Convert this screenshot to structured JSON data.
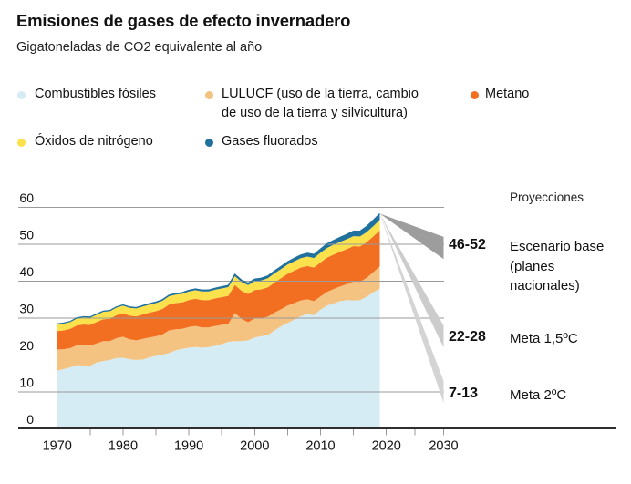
{
  "header": {
    "title": "Emisiones de gases de efecto invernadero",
    "subtitle": "Gigatoneladas de CO2 equivalente al año"
  },
  "legend": {
    "items": [
      {
        "label": "Combustibles fósiles"
      },
      {
        "label": "LULUCF (uso de la tierra, cambio\nde uso de la tierra y silvicultura)"
      },
      {
        "label": "Metano"
      },
      {
        "label": "Óxidos de nitrógeno"
      },
      {
        "label": "Gases fluorados"
      }
    ]
  },
  "chart_data": {
    "type": "area",
    "title": "Emisiones de gases de efecto invernadero",
    "ylabel": "Gigatoneladas de CO2 equivalente al año",
    "stacked": true,
    "grid": true,
    "years_start": 1970,
    "years_end": 2019,
    "series": [
      {
        "id": "combustibles-fosiles",
        "name": "Combustibles fósiles",
        "color": "#d6ecf5",
        "values": [
          15.8,
          16.2,
          16.7,
          17.3,
          17.2,
          17.1,
          18.0,
          18.4,
          18.7,
          19.2,
          19.3,
          18.9,
          18.7,
          18.8,
          19.4,
          19.8,
          20.1,
          20.6,
          21.3,
          21.7,
          22.0,
          22.2,
          22.0,
          22.2,
          22.5,
          23.0,
          23.6,
          23.8,
          23.8,
          24.0,
          24.8,
          25.1,
          25.4,
          26.7,
          27.8,
          28.7,
          29.6,
          30.5,
          31.1,
          30.8,
          32.3,
          33.4,
          34.0,
          34.6,
          34.9,
          34.8,
          34.9,
          35.8,
          37.0,
          38.0
        ]
      },
      {
        "id": "lulucf",
        "name": "LULUCF",
        "color": "#f5c381",
        "values": [
          5.7,
          5.4,
          5.2,
          5.4,
          5.6,
          5.5,
          5.2,
          5.4,
          5.1,
          5.4,
          5.7,
          5.4,
          5.3,
          5.6,
          5.4,
          5.3,
          5.5,
          6.1,
          5.7,
          5.4,
          5.6,
          5.7,
          5.5,
          5.3,
          5.4,
          5.2,
          4.9,
          7.6,
          6.0,
          4.9,
          5.1,
          4.9,
          5.0,
          4.8,
          4.6,
          4.7,
          4.5,
          4.3,
          4.0,
          3.8,
          3.6,
          3.7,
          3.9,
          4.0,
          4.3,
          5.1,
          4.9,
          5.1,
          5.4,
          6.0
        ]
      },
      {
        "id": "metano",
        "name": "Metano",
        "color": "#f26e21",
        "values": [
          5.0,
          5.1,
          5.2,
          5.35,
          5.5,
          5.6,
          5.75,
          5.9,
          6.05,
          6.2,
          6.3,
          6.4,
          6.5,
          6.6,
          6.7,
          6.8,
          6.9,
          7.0,
          7.1,
          7.2,
          7.3,
          7.35,
          7.4,
          7.4,
          7.45,
          7.5,
          7.55,
          7.6,
          7.6,
          7.65,
          7.7,
          7.8,
          7.95,
          8.15,
          8.4,
          8.6,
          8.75,
          8.9,
          9.0,
          9.1,
          9.2,
          9.3,
          9.35,
          9.4,
          9.5,
          9.6,
          9.6,
          9.65,
          9.7,
          9.8
        ]
      },
      {
        "id": "oxidos-de-nitrogeno",
        "name": "Óxidos de nitrógeno",
        "color": "#fbe14b",
        "values": [
          1.9,
          1.92,
          1.94,
          1.96,
          1.98,
          2.0,
          2.02,
          2.04,
          2.06,
          2.08,
          2.1,
          2.12,
          2.14,
          2.16,
          2.18,
          2.2,
          2.22,
          2.24,
          2.26,
          2.28,
          2.3,
          2.31,
          2.32,
          2.33,
          2.34,
          2.35,
          2.36,
          2.37,
          2.38,
          2.39,
          2.4,
          2.42,
          2.44,
          2.46,
          2.48,
          2.5,
          2.52,
          2.54,
          2.56,
          2.58,
          2.6,
          2.62,
          2.64,
          2.66,
          2.68,
          2.7,
          2.72,
          2.74,
          2.77,
          2.8
        ]
      },
      {
        "id": "gases-fluorados",
        "name": "Gases fluorados",
        "color": "#20719e",
        "values": [
          0.05,
          0.06,
          0.08,
          0.09,
          0.1,
          0.12,
          0.13,
          0.15,
          0.17,
          0.18,
          0.2,
          0.21,
          0.23,
          0.24,
          0.26,
          0.27,
          0.29,
          0.3,
          0.32,
          0.34,
          0.35,
          0.36,
          0.38,
          0.4,
          0.42,
          0.45,
          0.47,
          0.49,
          0.51,
          0.53,
          0.55,
          0.58,
          0.62,
          0.66,
          0.7,
          0.75,
          0.8,
          0.85,
          0.9,
          0.95,
          1.0,
          1.07,
          1.14,
          1.21,
          1.28,
          1.35,
          1.43,
          1.52,
          1.61,
          1.7
        ]
      }
    ],
    "y_axis": {
      "ticks": [
        0,
        10,
        20,
        30,
        40,
        50,
        60
      ],
      "min": 0,
      "max": 60
    },
    "x_axis": {
      "tick_years": [
        1970,
        1975,
        1980,
        1985,
        1990,
        1995,
        2000,
        2005,
        2010,
        2015,
        2020,
        2025,
        2030
      ],
      "label_years": [
        1970,
        1980,
        1990,
        2000,
        2010,
        2020,
        2030
      ]
    },
    "projections": {
      "label": "Proyecciones",
      "start_year": 2019,
      "end_year": 2030,
      "wedges": [
        {
          "id": "escenario-base",
          "value_label": "46-52",
          "desc": "Escenario base\n(planes\nnacionales)",
          "range_2030": [
            46,
            52
          ],
          "color": "#9d9d9d"
        },
        {
          "id": "meta-1-5",
          "value_label": "22-28",
          "desc": "Meta 1,5ºC",
          "range_2030": [
            22,
            28
          ],
          "color": "#cccccc"
        },
        {
          "id": "meta-2",
          "value_label": "7-13",
          "desc": "Meta 2ºC",
          "range_2030": [
            7,
            13
          ],
          "color": "#d4d4d4"
        }
      ]
    }
  }
}
